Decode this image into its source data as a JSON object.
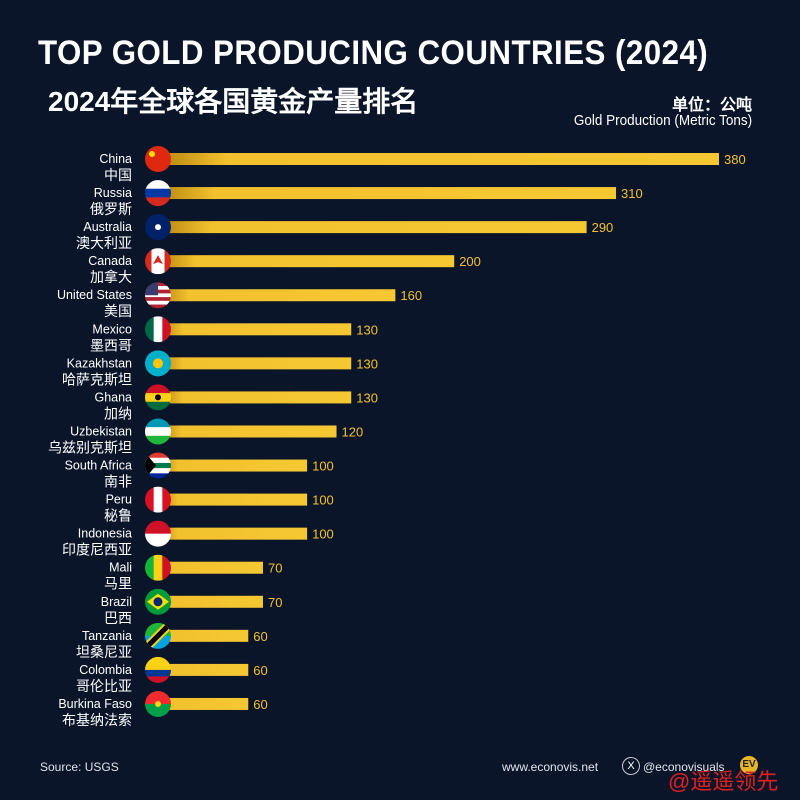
{
  "header": {
    "title": "TOP GOLD PRODUCING COUNTRIES (2024)",
    "subtitle_cn": "2024年全球各国黄金产量排名",
    "unit_cn": "单位：公吨",
    "unit_en": "Gold Production (Metric Tons)"
  },
  "footer": {
    "source": "Source: USGS",
    "website": "www.econovis.net",
    "x_icon": "x-logo-icon",
    "handle": "@econovisuals",
    "logo": "EV",
    "watermark": "@遥遥领先"
  },
  "colors": {
    "background": "#0b1529",
    "bar": "#f2c12e",
    "bar_start": "#c9961a",
    "text": "#ffffff"
  },
  "chart_data": {
    "type": "bar",
    "orientation": "horizontal",
    "categories": [
      "China",
      "Russia",
      "Australia",
      "Canada",
      "United States",
      "Mexico",
      "Kazakhstan",
      "Ghana",
      "Uzbekistan",
      "South Africa",
      "Peru",
      "Indonesia",
      "Mali",
      "Brazil",
      "Tanzania",
      "Colombia",
      "Burkina Faso"
    ],
    "categories_cn": [
      "中国",
      "俄罗斯",
      "澳大利亚",
      "加拿大",
      "美国",
      "墨西哥",
      "哈萨克斯坦",
      "加纳",
      "乌兹别克斯坦",
      "南非",
      "秘鲁",
      "印度尼西亚",
      "马里",
      "巴西",
      "坦桑尼亚",
      "哥伦比亚",
      "布基纳法索"
    ],
    "values": [
      380,
      310,
      290,
      200,
      160,
      130,
      130,
      130,
      120,
      100,
      100,
      100,
      70,
      70,
      60,
      60,
      60
    ],
    "flags": [
      "china-flag",
      "russia-flag",
      "australia-flag",
      "canada-flag",
      "usa-flag",
      "mexico-flag",
      "kazakhstan-flag",
      "ghana-flag",
      "uzbekistan-flag",
      "south-africa-flag",
      "peru-flag",
      "indonesia-flag",
      "mali-flag",
      "brazil-flag",
      "tanzania-flag",
      "colombia-flag",
      "burkina-faso-flag"
    ],
    "xlim": [
      0,
      380
    ],
    "grid": false,
    "legend": "none",
    "data_labels": true
  }
}
